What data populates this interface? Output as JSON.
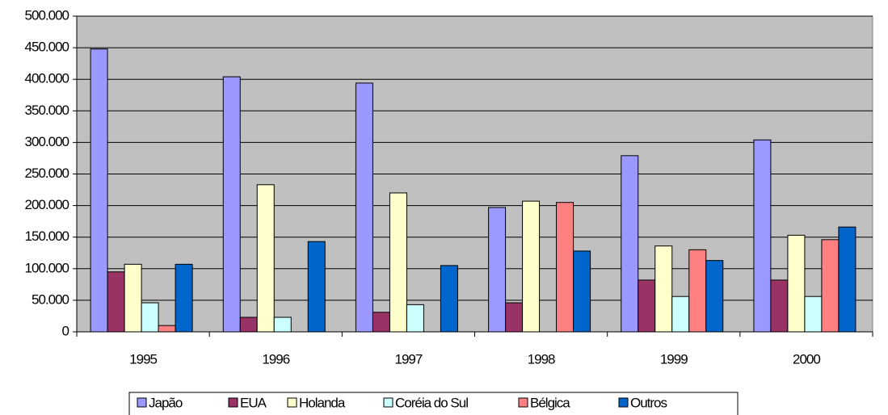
{
  "chart_data": {
    "type": "bar",
    "categories": [
      "1995",
      "1996",
      "1997",
      "1998",
      "1999",
      "2000"
    ],
    "series": [
      {
        "name": "Japão",
        "color": "#9999ff",
        "values": [
          448000,
          404000,
          394000,
          197000,
          279000,
          304000
        ]
      },
      {
        "name": "EUA",
        "color": "#993366",
        "values": [
          95000,
          23000,
          31000,
          46000,
          82000,
          82000
        ]
      },
      {
        "name": "Holanda",
        "color": "#ffffcc",
        "values": [
          107000,
          233000,
          220000,
          207000,
          136000,
          153000
        ]
      },
      {
        "name": "Coréia do Sul",
        "color": "#ccffff",
        "values": [
          46000,
          23000,
          43000,
          0,
          56000,
          56000
        ]
      },
      {
        "name": "Bélgica",
        "color": "#ff8080",
        "values": [
          10000,
          0,
          0,
          205000,
          130000,
          146000
        ]
      },
      {
        "name": "Outros",
        "color": "#0066cc",
        "values": [
          107000,
          143000,
          105000,
          128000,
          113000,
          166000
        ]
      }
    ],
    "ylim": [
      0,
      500000
    ],
    "yticks": [
      0,
      {
        "value": 50000,
        "label": "50.000"
      },
      {
        "value": 100000,
        "label": "100.000"
      },
      {
        "value": 150000,
        "label": "150.000"
      },
      {
        "value": 200000,
        "label": "200.000"
      },
      {
        "value": 250000,
        "label": "250.000"
      },
      {
        "value": 300000,
        "label": "300.000"
      },
      {
        "value": 350000,
        "label": "350.000"
      },
      {
        "value": 400000,
        "label": "400.000"
      },
      {
        "value": 450000,
        "label": "450.000"
      },
      {
        "value": 500000,
        "label": "500.000"
      }
    ],
    "grid": true,
    "legend": "bottom",
    "plot_background": "#c0c0c0"
  }
}
